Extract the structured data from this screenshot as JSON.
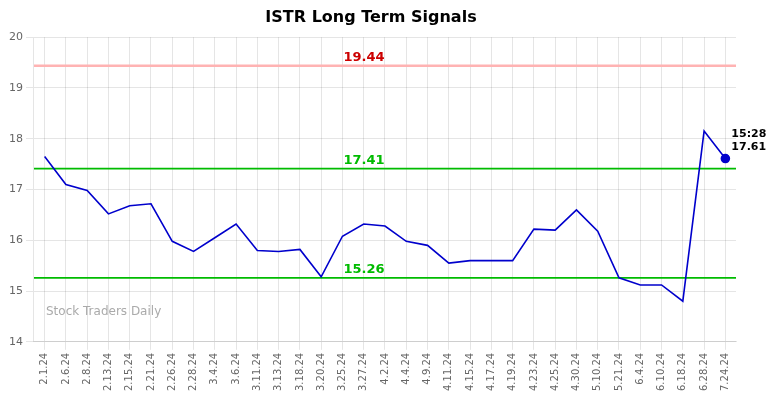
{
  "chart_data": {
    "type": "line",
    "title": "ISTR Long Term Signals",
    "categories": [
      "2.1.24",
      "2.6.24",
      "2.8.24",
      "2.13.24",
      "2.15.24",
      "2.21.24",
      "2.26.24",
      "2.28.24",
      "3.4.24",
      "3.6.24",
      "3.11.24",
      "3.13.24",
      "3.18.24",
      "3.20.24",
      "3.25.24",
      "3.27.24",
      "4.2.24",
      "4.4.24",
      "4.9.24",
      "4.11.24",
      "4.15.24",
      "4.17.24",
      "4.19.24",
      "4.23.24",
      "4.25.24",
      "4.30.24",
      "5.10.24",
      "5.21.24",
      "6.4.24",
      "6.10.24",
      "6.18.24",
      "6.28.24",
      "7.24.24"
    ],
    "values": [
      17.65,
      17.1,
      16.98,
      16.52,
      16.68,
      16.72,
      15.98,
      15.78,
      16.05,
      16.32,
      15.8,
      15.78,
      15.82,
      15.28,
      16.08,
      16.32,
      16.28,
      15.98,
      15.9,
      15.55,
      15.6,
      15.6,
      15.6,
      16.22,
      16.2,
      16.6,
      16.18,
      15.26,
      15.12,
      15.12,
      14.8,
      18.15,
      17.61
    ],
    "color": "#0000cc",
    "ylim": [
      14.0,
      20.0
    ],
    "yticks": [
      14,
      15,
      16,
      17,
      18,
      19,
      20
    ],
    "grid": true,
    "hlines": [
      {
        "value": 19.44,
        "color": "#ffb3b3",
        "label_color": "#cc0000"
      },
      {
        "value": 17.41,
        "color": "#00bb00"
      },
      {
        "value": 15.26,
        "color": "#00bb00"
      }
    ],
    "annotations": [
      {
        "x": "7.24.24",
        "y": 17.61,
        "text": [
          "15:28",
          "17.61"
        ],
        "marker": "circle"
      }
    ],
    "watermark": "Stock Traders Daily"
  }
}
